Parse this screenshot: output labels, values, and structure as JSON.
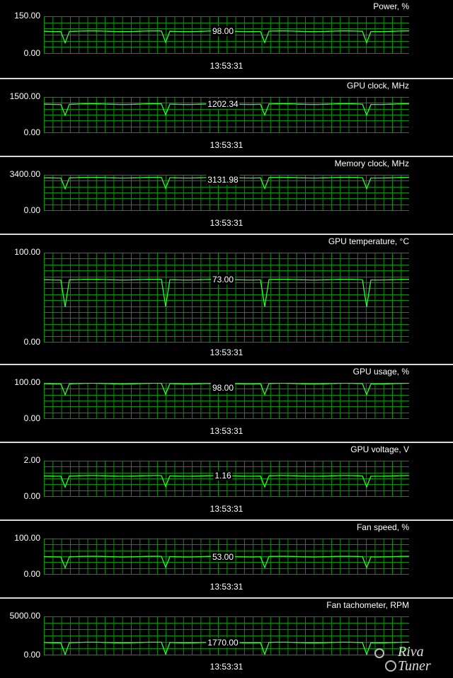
{
  "cursor": {
    "time": "13:53:31"
  },
  "panels": [
    {
      "title": "Power, %",
      "ymax": "150.00",
      "ymin": "0.00",
      "value": "98.00",
      "max": 150,
      "level": 90
    },
    {
      "title": "GPU clock, MHz",
      "ymax": "1500.00",
      "ymin": "0.00",
      "value": "1202.34",
      "max": 1500,
      "level": 1202.34
    },
    {
      "title": "Memory clock, MHz",
      "ymax": "3400.00",
      "ymin": "0.00",
      "value": "3131.98",
      "max": 3400,
      "level": 3131.98
    },
    {
      "title": "GPU temperature, °C",
      "ymax": "100.00",
      "ymin": "0.00",
      "value": "73.00",
      "max": 100,
      "level": 70
    },
    {
      "title": "GPU usage, %",
      "ymax": "100.00",
      "ymin": "0.00",
      "value": "98.00",
      "max": 100,
      "level": 98
    },
    {
      "title": "GPU voltage, V",
      "ymax": "2.00",
      "ymin": "0.00",
      "value": "1.16",
      "max": 2,
      "level": 1.16
    },
    {
      "title": "Fan speed, %",
      "ymax": "100.00",
      "ymin": "0.00",
      "value": "53.00",
      "max": 100,
      "level": 50
    },
    {
      "title": "Fan tachometer, RPM",
      "ymax": "5000.00",
      "ymin": "0.00",
      "value": "1770.00",
      "max": 5000,
      "level": 1650
    }
  ],
  "colors": {
    "grid": "#009600",
    "line": "#28ff28",
    "cursor": "#e6e600",
    "background": "#000000"
  },
  "logo": {
    "text": "RivaTuner",
    "icon": "gear-icon"
  }
}
